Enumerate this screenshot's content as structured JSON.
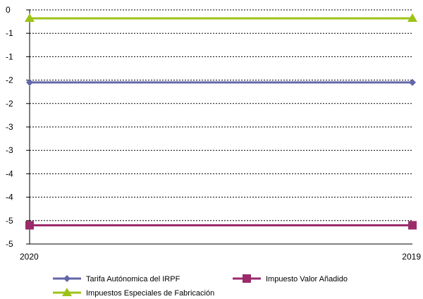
{
  "chart_data": {
    "type": "line",
    "x": [
      "2020",
      "2019"
    ],
    "y_tick_labels": [
      "0",
      "-1",
      "-1",
      "-2",
      "-2",
      "-3",
      "-3",
      "-4",
      "-4",
      "-5",
      "-5"
    ],
    "ylim": [
      -5.0,
      0.0
    ],
    "grid": true,
    "legend_position": "bottom",
    "series": [
      {
        "name": "Tarifa Autónomica del IRPF",
        "values": [
          -1.55,
          -1.55
        ],
        "color": "#6366a8",
        "marker": "diamond"
      },
      {
        "name": "Impuesto Valor Añadido",
        "values": [
          -4.6,
          -4.6
        ],
        "color": "#9b2a6a",
        "marker": "square"
      },
      {
        "name": "Impuestos Especiales de Fabricación",
        "values": [
          -0.18,
          -0.18
        ],
        "color": "#9dc218",
        "marker": "triangle"
      }
    ]
  }
}
